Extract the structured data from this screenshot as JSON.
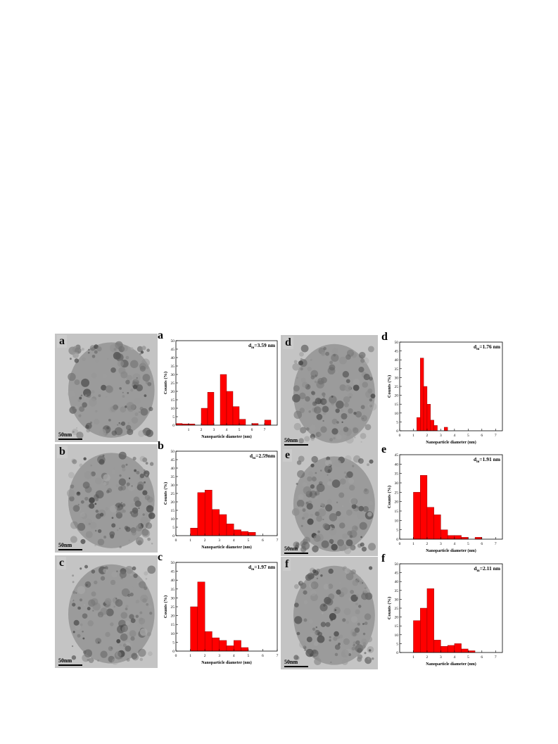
{
  "panels": [
    {
      "id": "a",
      "tem_label": "a",
      "scale_label": "50nm",
      "hist_label": "a",
      "annotation_base": "d",
      "annotation_sub": "m",
      "annotation_value": "=3.59 nm"
    },
    {
      "id": "b",
      "tem_label": "b",
      "scale_label": "50nm",
      "hist_label": "b",
      "annotation_base": "d",
      "annotation_sub": "m",
      "annotation_value": "=2.59nm"
    },
    {
      "id": "c",
      "tem_label": "c",
      "scale_label": "50nm",
      "hist_label": "c",
      "annotation_base": "d",
      "annotation_sub": "m",
      "annotation_value": "=1.97 nm"
    },
    {
      "id": "d",
      "tem_label": "d",
      "scale_label": "50nm",
      "hist_label": "d",
      "annotation_base": "d",
      "annotation_sub": "m",
      "annotation_value": "=1.76 nm"
    },
    {
      "id": "e",
      "tem_label": "e",
      "scale_label": "50nm",
      "hist_label": "e",
      "annotation_base": "d",
      "annotation_sub": "m",
      "annotation_value": "=1.91 nm"
    },
    {
      "id": "f",
      "tem_label": "f",
      "scale_label": "50nm",
      "hist_label": "f",
      "annotation_base": "d",
      "annotation_sub": "m",
      "annotation_value": "=2.11 nm"
    }
  ],
  "chart_data": [
    {
      "panel": "a",
      "type": "bar",
      "xlabel": "Nanoparticle diameter (nm)",
      "ylabel": "Counts (%)",
      "xlim": [
        0,
        8
      ],
      "ylim": [
        0,
        50
      ],
      "xticks": [
        1,
        2,
        3,
        4,
        5,
        6,
        7
      ],
      "yticks": [
        0,
        5,
        10,
        15,
        20,
        25,
        30,
        35,
        40,
        45,
        50
      ],
      "bins": [
        [
          0,
          0.5,
          1
        ],
        [
          0.5,
          1,
          0.7
        ],
        [
          1,
          1.5,
          0.7
        ],
        [
          2,
          2.5,
          10
        ],
        [
          2.5,
          3,
          19.5
        ],
        [
          3.5,
          4,
          30
        ],
        [
          4,
          4.5,
          20
        ],
        [
          4.5,
          5,
          11
        ],
        [
          5,
          5.5,
          3.5
        ],
        [
          6,
          6.5,
          1
        ],
        [
          7,
          7.5,
          3
        ]
      ]
    },
    {
      "panel": "b",
      "type": "bar",
      "xlabel": "Nanoparticle diameter (nm)",
      "ylabel": "Counts (%)",
      "xlim": [
        0,
        7
      ],
      "ylim": [
        0,
        50
      ],
      "xticks": [
        0,
        1,
        2,
        3,
        4,
        5,
        6,
        7
      ],
      "yticks": [
        0,
        5,
        10,
        15,
        20,
        25,
        30,
        35,
        40,
        45,
        50
      ],
      "bins": [
        [
          1,
          1.5,
          4.5
        ],
        [
          1.5,
          2,
          25.5
        ],
        [
          2,
          2.5,
          27
        ],
        [
          2.5,
          3,
          15.5
        ],
        [
          3,
          3.5,
          12.5
        ],
        [
          3.5,
          4,
          7
        ],
        [
          4,
          4.5,
          3.5
        ],
        [
          4.5,
          5,
          2.5
        ],
        [
          5,
          5.5,
          2
        ]
      ]
    },
    {
      "panel": "c",
      "type": "bar",
      "xlabel": "Nanoparticle diameter (nm)",
      "ylabel": "Counts (%)",
      "xlim": [
        0,
        7
      ],
      "ylim": [
        0,
        50
      ],
      "xticks": [
        0,
        1,
        2,
        3,
        4,
        5,
        6,
        7
      ],
      "yticks": [
        0,
        5,
        10,
        15,
        20,
        25,
        30,
        35,
        40,
        45,
        50
      ],
      "bins": [
        [
          1,
          1.5,
          25
        ],
        [
          1.5,
          2,
          39
        ],
        [
          2,
          2.5,
          11
        ],
        [
          2.5,
          3,
          7.5
        ],
        [
          3,
          3.5,
          6
        ],
        [
          3.5,
          4,
          3
        ],
        [
          4,
          4.5,
          6
        ],
        [
          4.5,
          5,
          2
        ]
      ]
    },
    {
      "panel": "d",
      "type": "bar",
      "xlabel": "Nanoparticle diameter (nm)",
      "ylabel": "Counts (%)",
      "xlim": [
        0,
        7.5
      ],
      "ylim": [
        0,
        50
      ],
      "xticks": [
        0,
        1,
        2,
        3,
        4,
        5,
        6,
        7
      ],
      "yticks": [
        0,
        5,
        10,
        15,
        20,
        25,
        30,
        35,
        40,
        45,
        50
      ],
      "bins": [
        [
          1.25,
          1.5,
          7.5
        ],
        [
          1.5,
          1.75,
          41
        ],
        [
          1.75,
          2,
          25
        ],
        [
          2,
          2.25,
          15
        ],
        [
          2.25,
          2.5,
          6
        ],
        [
          2.5,
          2.75,
          3
        ],
        [
          3.25,
          3.5,
          2
        ]
      ]
    },
    {
      "panel": "e",
      "type": "bar",
      "xlabel": "Nanoparticle diameter (nm)",
      "ylabel": "Counts (%)",
      "xlim": [
        0,
        7.5
      ],
      "ylim": [
        0,
        45
      ],
      "xticks": [
        0,
        1,
        2,
        3,
        4,
        5,
        6,
        7
      ],
      "yticks": [
        0,
        5,
        10,
        15,
        20,
        25,
        30,
        35,
        40,
        45
      ],
      "bins": [
        [
          1,
          1.5,
          25
        ],
        [
          1.5,
          2,
          34
        ],
        [
          2,
          2.5,
          17
        ],
        [
          2.5,
          3,
          13
        ],
        [
          3,
          3.5,
          5
        ],
        [
          3.5,
          4,
          2
        ],
        [
          4,
          4.5,
          2
        ],
        [
          4.5,
          5,
          1
        ],
        [
          5.5,
          6,
          1
        ]
      ]
    },
    {
      "panel": "f",
      "type": "bar",
      "xlabel": "Nanoparticle diameter (nm)",
      "ylabel": "Counts (%)",
      "xlim": [
        0,
        7.5
      ],
      "ylim": [
        0,
        50
      ],
      "xticks": [
        1,
        2,
        3,
        4,
        5,
        6,
        7
      ],
      "yticks": [
        0,
        5,
        10,
        15,
        20,
        25,
        30,
        35,
        40,
        45,
        50
      ],
      "bins": [
        [
          1,
          1.5,
          18
        ],
        [
          1.5,
          2,
          25
        ],
        [
          2,
          2.5,
          36
        ],
        [
          2.5,
          3,
          7
        ],
        [
          3,
          3.5,
          3.5
        ],
        [
          3.5,
          4,
          4
        ],
        [
          4,
          4.5,
          5
        ],
        [
          4.5,
          5,
          2
        ],
        [
          5,
          5.5,
          1
        ]
      ]
    }
  ],
  "colors": {
    "bar": "#ff0000",
    "bar_edge": "#7a0000",
    "axis": "#000000"
  }
}
